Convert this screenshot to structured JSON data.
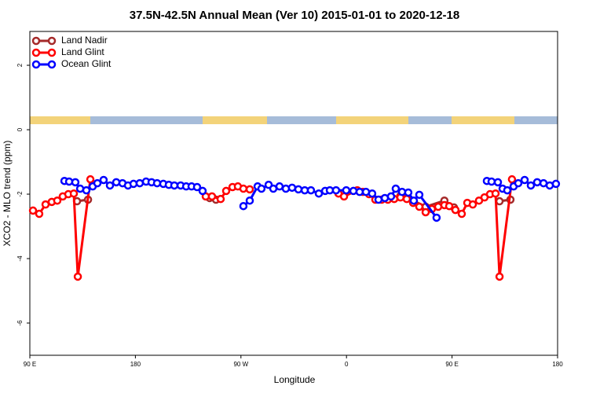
{
  "chart_data": {
    "type": "line",
    "title": "37.5N-42.5N Annual Mean (Ver 10)   2015-01-01 to 2020-12-18",
    "xlabel": "Longitude",
    "ylabel": "XCO2 - MLO trend (ppm)",
    "xlim": [
      90,
      540
    ],
    "xticks": [
      {
        "value": 90,
        "label": "90 E"
      },
      {
        "value": 180,
        "label": "180"
      },
      {
        "value": 270,
        "label": "90 W"
      },
      {
        "value": 360,
        "label": "0"
      },
      {
        "value": 450,
        "label": "90 E"
      },
      {
        "value": 540,
        "label": "180"
      }
    ],
    "ylim": [
      -7,
      3.05
    ],
    "yticks": [
      -6,
      -4,
      -2,
      0,
      2
    ],
    "legend": "upper left",
    "series": [
      {
        "name": "Land Nadir",
        "color": "#a52a2a",
        "x": [
          130.2,
          139.6,
          null,
          243.3,
          248.7,
          null,
          406.0,
          411.4,
          427.5,
          443.5,
          451.6,
          null,
          490.5,
          499.8
        ],
        "values": [
          -2.22,
          -2.17,
          null,
          -2.12,
          -2.17,
          null,
          -2.05,
          -2.1,
          -2.39,
          -2.2,
          -2.41,
          null,
          -2.22,
          -2.17
        ]
      },
      {
        "name": "Land Glint",
        "color": "#ff0000",
        "x": [
          92.7,
          98.0,
          103.4,
          108.7,
          113.4,
          118.1,
          122.8,
          127.5,
          130.9,
          141.6,
          null,
          240.0,
          245.3,
          252.7,
          257.4,
          262.8,
          267.4,
          272.1,
          277.5,
          null,
          353.2,
          357.9,
          369.2,
          373.9,
          379.3,
          384.6,
          390.0,
          395.3,
          400.7,
          406.0,
          411.4,
          416.8,
          422.1,
          427.5,
          432.8,
          438.2,
          443.5,
          447.6,
          452.9,
          458.3,
          463.0,
          467.7,
          473.0,
          477.7,
          482.4,
          487.1,
          490.5,
          501.1
        ],
        "values": [
          -2.51,
          -2.61,
          -2.32,
          -2.24,
          -2.2,
          -2.07,
          -2.0,
          -1.98,
          -4.56,
          -1.54,
          null,
          -2.07,
          -2.07,
          -2.15,
          -1.9,
          -1.78,
          -1.76,
          -1.83,
          -1.85,
          null,
          -1.98,
          -2.07,
          -1.88,
          -1.93,
          -2.0,
          -2.17,
          -2.17,
          -2.17,
          -2.15,
          -2.1,
          -2.15,
          -2.27,
          -2.39,
          -2.56,
          -2.46,
          -2.39,
          -2.34,
          -2.37,
          -2.49,
          -2.61,
          -2.27,
          -2.32,
          -2.2,
          -2.1,
          -2.0,
          -1.98,
          -4.56,
          -1.54
        ]
      },
      {
        "name": "Ocean Glint",
        "color": "#0000ff",
        "x": [
          119.5,
          123.5,
          128.8,
          132.9,
          138.2,
          143.6,
          147.6,
          152.9,
          158.3,
          163.7,
          169.0,
          173.7,
          178.4,
          183.7,
          189.1,
          193.8,
          198.5,
          203.8,
          208.5,
          213.2,
          218.6,
          223.3,
          227.9,
          232.6,
          237.3,
          null,
          272.1,
          277.5,
          284.2,
          287.5,
          293.6,
          297.6,
          302.9,
          308.3,
          313.6,
          319.0,
          324.4,
          329.7,
          336.4,
          341.8,
          345.8,
          351.1,
          359.8,
          365.9,
          371.2,
          376.6,
          381.9,
          387.3,
          392.7,
          398.0,
          402.0,
          407.4,
          412.7,
          417.4,
          422.1,
          436.8,
          null,
          479.7,
          483.7,
          489.1,
          493.1,
          497.1,
          502.5,
          506.5,
          511.9,
          517.2,
          522.6,
          528.0,
          533.3,
          538.6
        ],
        "values": [
          -1.59,
          -1.61,
          -1.63,
          -1.83,
          -1.88,
          -1.76,
          -1.66,
          -1.56,
          -1.73,
          -1.63,
          -1.66,
          -1.73,
          -1.68,
          -1.66,
          -1.61,
          -1.63,
          -1.66,
          -1.68,
          -1.71,
          -1.73,
          -1.73,
          -1.76,
          -1.76,
          -1.78,
          -1.9,
          null,
          -2.37,
          -2.2,
          -1.76,
          -1.83,
          -1.71,
          -1.83,
          -1.76,
          -1.83,
          -1.8,
          -1.85,
          -1.88,
          -1.88,
          -1.98,
          -1.9,
          -1.88,
          -1.88,
          -1.88,
          -1.9,
          -1.93,
          -1.93,
          -1.98,
          -2.17,
          -2.12,
          -2.07,
          -1.83,
          -1.93,
          -1.95,
          -2.2,
          -2.02,
          -2.73,
          null,
          -1.59,
          -1.61,
          -1.63,
          -1.83,
          -1.88,
          -1.76,
          -1.66,
          -1.56,
          -1.73,
          -1.63,
          -1.66,
          -1.73,
          -1.68
        ]
      }
    ]
  }
}
